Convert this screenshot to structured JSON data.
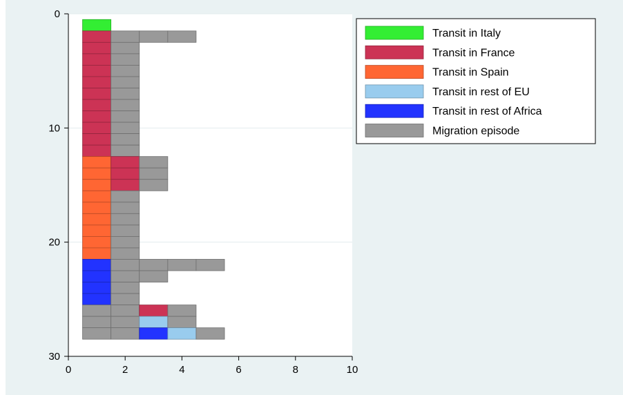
{
  "chart_data": {
    "type": "bar",
    "orientation": "horizontal",
    "stacked": true,
    "title": "",
    "xlabel": "",
    "ylabel": "",
    "xlim": [
      0,
      10
    ],
    "ylim": [
      30,
      0
    ],
    "x_ticks": [
      0,
      2,
      4,
      6,
      8,
      10
    ],
    "y_ticks": [
      0,
      10,
      20,
      30
    ],
    "grid": true,
    "legend_position": "right",
    "legend": [
      {
        "key": "italy",
        "label": "Transit in Italy",
        "color": "#33ee33"
      },
      {
        "key": "france",
        "label": "Transit in France",
        "color": "#cc3355"
      },
      {
        "key": "spain",
        "label": "Transit in Spain",
        "color": "#ff6633"
      },
      {
        "key": "rest_eu",
        "label": "Transit in rest of EU",
        "color": "#99ccee"
      },
      {
        "key": "rest_africa",
        "label": "Transit in rest of Africa",
        "color": "#2233ff"
      },
      {
        "key": "episode",
        "label": "Migration episode",
        "color": "#999999"
      }
    ],
    "rows": [
      {
        "y": 1,
        "segments": [
          {
            "key": "italy",
            "x": 1
          }
        ]
      },
      {
        "y": 2,
        "segments": [
          {
            "key": "france",
            "x": 1
          },
          {
            "key": "episode",
            "x": 2
          },
          {
            "key": "episode",
            "x": 3
          },
          {
            "key": "episode",
            "x": 4
          }
        ]
      },
      {
        "y": 3,
        "segments": [
          {
            "key": "france",
            "x": 1
          },
          {
            "key": "episode",
            "x": 2
          }
        ]
      },
      {
        "y": 4,
        "segments": [
          {
            "key": "france",
            "x": 1
          },
          {
            "key": "episode",
            "x": 2
          }
        ]
      },
      {
        "y": 5,
        "segments": [
          {
            "key": "france",
            "x": 1
          },
          {
            "key": "episode",
            "x": 2
          }
        ]
      },
      {
        "y": 6,
        "segments": [
          {
            "key": "france",
            "x": 1
          },
          {
            "key": "episode",
            "x": 2
          }
        ]
      },
      {
        "y": 7,
        "segments": [
          {
            "key": "france",
            "x": 1
          },
          {
            "key": "episode",
            "x": 2
          }
        ]
      },
      {
        "y": 8,
        "segments": [
          {
            "key": "france",
            "x": 1
          },
          {
            "key": "episode",
            "x": 2
          }
        ]
      },
      {
        "y": 9,
        "segments": [
          {
            "key": "france",
            "x": 1
          },
          {
            "key": "episode",
            "x": 2
          }
        ]
      },
      {
        "y": 10,
        "segments": [
          {
            "key": "france",
            "x": 1
          },
          {
            "key": "episode",
            "x": 2
          }
        ]
      },
      {
        "y": 11,
        "segments": [
          {
            "key": "france",
            "x": 1
          },
          {
            "key": "episode",
            "x": 2
          }
        ]
      },
      {
        "y": 12,
        "segments": [
          {
            "key": "france",
            "x": 1
          },
          {
            "key": "episode",
            "x": 2
          }
        ]
      },
      {
        "y": 13,
        "segments": [
          {
            "key": "spain",
            "x": 1
          },
          {
            "key": "france",
            "x": 2
          },
          {
            "key": "episode",
            "x": 3
          }
        ]
      },
      {
        "y": 14,
        "segments": [
          {
            "key": "spain",
            "x": 1
          },
          {
            "key": "france",
            "x": 2
          },
          {
            "key": "episode",
            "x": 3
          }
        ]
      },
      {
        "y": 15,
        "segments": [
          {
            "key": "spain",
            "x": 1
          },
          {
            "key": "france",
            "x": 2
          },
          {
            "key": "episode",
            "x": 3
          }
        ]
      },
      {
        "y": 16,
        "segments": [
          {
            "key": "spain",
            "x": 1
          },
          {
            "key": "episode",
            "x": 2
          }
        ]
      },
      {
        "y": 17,
        "segments": [
          {
            "key": "spain",
            "x": 1
          },
          {
            "key": "episode",
            "x": 2
          }
        ]
      },
      {
        "y": 18,
        "segments": [
          {
            "key": "spain",
            "x": 1
          },
          {
            "key": "episode",
            "x": 2
          }
        ]
      },
      {
        "y": 19,
        "segments": [
          {
            "key": "spain",
            "x": 1
          },
          {
            "key": "episode",
            "x": 2
          }
        ]
      },
      {
        "y": 20,
        "segments": [
          {
            "key": "spain",
            "x": 1
          },
          {
            "key": "episode",
            "x": 2
          }
        ]
      },
      {
        "y": 21,
        "segments": [
          {
            "key": "spain",
            "x": 1
          },
          {
            "key": "episode",
            "x": 2
          }
        ]
      },
      {
        "y": 22,
        "segments": [
          {
            "key": "rest_africa",
            "x": 1
          },
          {
            "key": "episode",
            "x": 2
          },
          {
            "key": "episode",
            "x": 3
          },
          {
            "key": "episode",
            "x": 4
          },
          {
            "key": "episode",
            "x": 5
          }
        ]
      },
      {
        "y": 23,
        "segments": [
          {
            "key": "rest_africa",
            "x": 1
          },
          {
            "key": "episode",
            "x": 2
          },
          {
            "key": "episode",
            "x": 3
          }
        ]
      },
      {
        "y": 24,
        "segments": [
          {
            "key": "rest_africa",
            "x": 1
          },
          {
            "key": "episode",
            "x": 2
          }
        ]
      },
      {
        "y": 25,
        "segments": [
          {
            "key": "rest_africa",
            "x": 1
          },
          {
            "key": "episode",
            "x": 2
          }
        ]
      },
      {
        "y": 26,
        "segments": [
          {
            "key": "episode",
            "x": 1
          },
          {
            "key": "episode",
            "x": 2
          },
          {
            "key": "france",
            "x": 3
          },
          {
            "key": "episode",
            "x": 4
          }
        ]
      },
      {
        "y": 27,
        "segments": [
          {
            "key": "episode",
            "x": 1
          },
          {
            "key": "episode",
            "x": 2
          },
          {
            "key": "rest_eu",
            "x": 3
          },
          {
            "key": "episode",
            "x": 4
          }
        ]
      },
      {
        "y": 28,
        "segments": [
          {
            "key": "episode",
            "x": 1
          },
          {
            "key": "episode",
            "x": 2
          },
          {
            "key": "rest_africa",
            "x": 3
          },
          {
            "key": "rest_eu",
            "x": 4
          },
          {
            "key": "episode",
            "x": 5
          }
        ]
      }
    ]
  }
}
